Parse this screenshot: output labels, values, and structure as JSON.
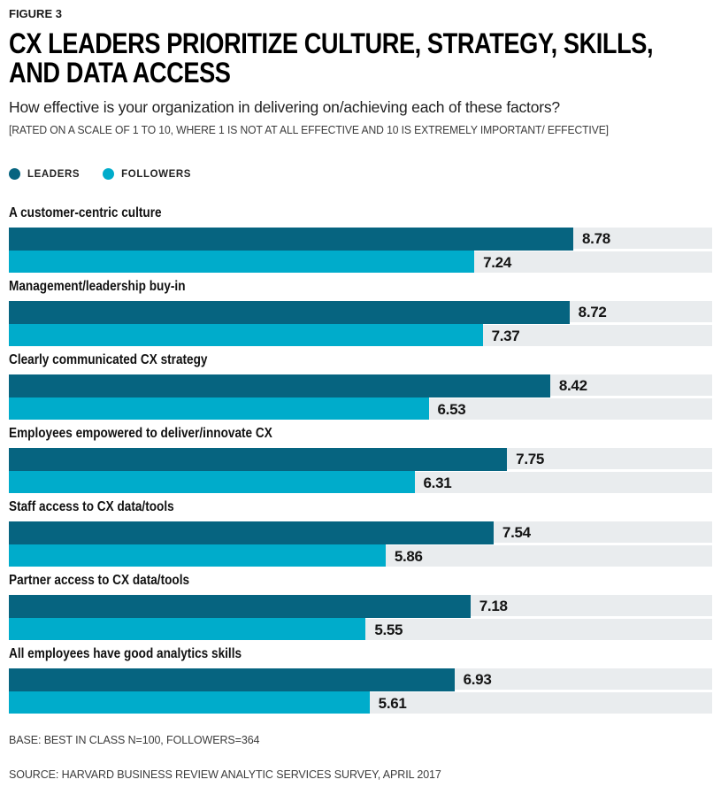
{
  "header": {
    "figure_label": "FIGURE 3",
    "title_lines": [
      "CX LEADERS PRIORITIZE CULTURE, STRATEGY, SKILLS,",
      "AND DATA ACCESS"
    ],
    "subtitle": "How effective is your organization in delivering on/achieving each of these factors?",
    "scale_note": "[RATED ON A SCALE OF 1 TO 10, WHERE 1 IS NOT AT ALL EFFECTIVE AND 10 IS EXTREMELY IMPORTANT/ EFFECTIVE]"
  },
  "legend": {
    "leaders": "LEADERS",
    "followers": "FOLLOWERS"
  },
  "colors": {
    "leaders": "#066480",
    "followers": "#00ACCB",
    "track": "#E9ECEE"
  },
  "chart_data": {
    "type": "bar",
    "orientation": "horizontal",
    "title": "CX LEADERS PRIORITIZE CULTURE, STRATEGY, SKILLS, AND DATA ACCESS",
    "categories": [
      "A customer-centric culture",
      "Management/leadership buy-in",
      "Clearly communicated CX strategy",
      "Employees empowered to deliver/innovate CX",
      "Staff access to CX data/tools",
      "Partner access to CX data/tools",
      "All employees have good analytics skills"
    ],
    "series": [
      {
        "name": "LEADERS",
        "color": "#066480",
        "values": [
          8.78,
          8.72,
          8.42,
          7.75,
          7.54,
          7.18,
          6.93
        ]
      },
      {
        "name": "FOLLOWERS",
        "color": "#00ACCB",
        "values": [
          7.24,
          7.37,
          6.53,
          6.31,
          5.86,
          5.55,
          5.61
        ]
      }
    ],
    "value_labels": true,
    "rating_scale": [
      1,
      10
    ],
    "axis_max": 10.94,
    "grid": false,
    "legend_position": "top",
    "track_background": "#E9ECEE"
  },
  "footer": {
    "base": "BASE: BEST IN CLASS N=100, FOLLOWERS=364",
    "source": "SOURCE: HARVARD BUSINESS REVIEW ANALYTIC SERVICES SURVEY, APRIL 2017"
  }
}
